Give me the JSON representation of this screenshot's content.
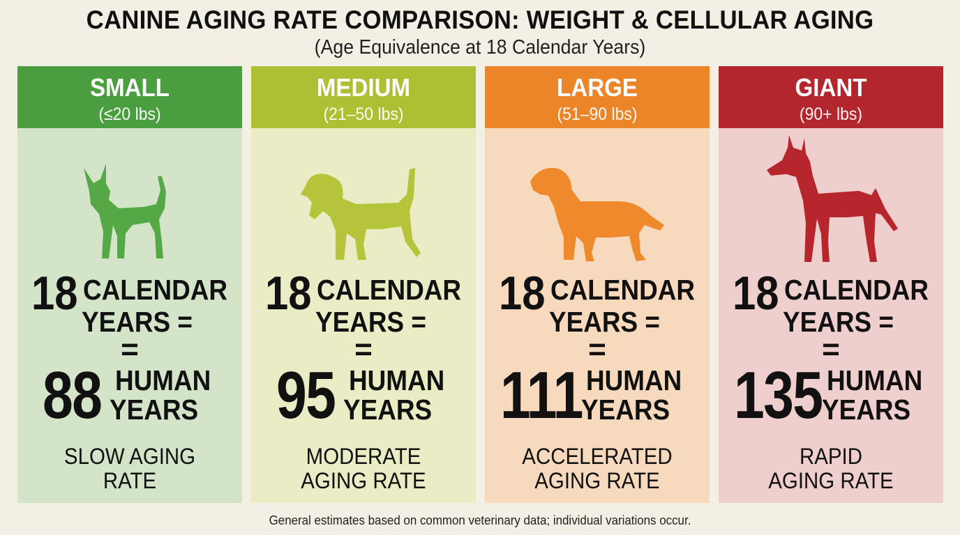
{
  "title": "CANINE AGING RATE COMPARISON: WEIGHT & CELLULAR AGING",
  "subtitle": "(Age Equivalence at 18 Calendar Years)",
  "footnote": "General estimates based on common veterinary data; individual variations occur.",
  "panels": [
    {
      "name": "SMALL",
      "range": "(≤20 lbs)",
      "calendar_number": "18",
      "calendar_text_1": "CALENDAR",
      "calendar_text_2": "YEARS =",
      "equals": "=",
      "human_number": "88",
      "human_text_1": "HUMAN",
      "human_text_2": "YEARS",
      "rate_1": "SLOW AGING",
      "rate_2": "RATE",
      "dog_icon": "chihuahua-silhouette-icon",
      "header_color": "#4b9e3f",
      "body_color": "#d3e4c8",
      "dog_color": "#55a845"
    },
    {
      "name": "MEDIUM",
      "range": "(21–50 lbs)",
      "calendar_number": "18",
      "calendar_text_1": "CALENDAR",
      "calendar_text_2": "YEARS =",
      "equals": "=",
      "human_number": "95",
      "human_text_1": "HUMAN",
      "human_text_2": "YEARS",
      "rate_1": "MODERATE",
      "rate_2": "AGING RATE",
      "dog_icon": "beagle-silhouette-icon",
      "header_color": "#afbf33",
      "body_color": "#e9ecc4",
      "dog_color": "#b5c43a"
    },
    {
      "name": "LARGE",
      "range": "(51–90 lbs)",
      "calendar_number": "18",
      "calendar_text_1": "CALENDAR",
      "calendar_text_2": "YEARS =",
      "equals": "=",
      "human_number": "111",
      "human_text_1": "HUMAN",
      "human_text_2": "YEARS",
      "rate_1": "ACCELERATED",
      "rate_2": "AGING RATE",
      "dog_icon": "golden-retriever-silhouette-icon",
      "header_color": "#ec8428",
      "body_color": "#f7d9be",
      "dog_color": "#ee8a2c"
    },
    {
      "name": "GIANT",
      "range": "(90+ lbs)",
      "calendar_number": "18",
      "calendar_text_1": "CALENDAR",
      "calendar_text_2": "YEARS =",
      "equals": "=",
      "human_number": "135",
      "human_text_1": "HUMAN",
      "human_text_2": "YEARS",
      "rate_1": "RAPID",
      "rate_2": "AGING RATE",
      "dog_icon": "great-dane-silhouette-icon",
      "header_color": "#b3262d",
      "body_color": "#efcfcd",
      "dog_color": "#b8262d"
    }
  ]
}
